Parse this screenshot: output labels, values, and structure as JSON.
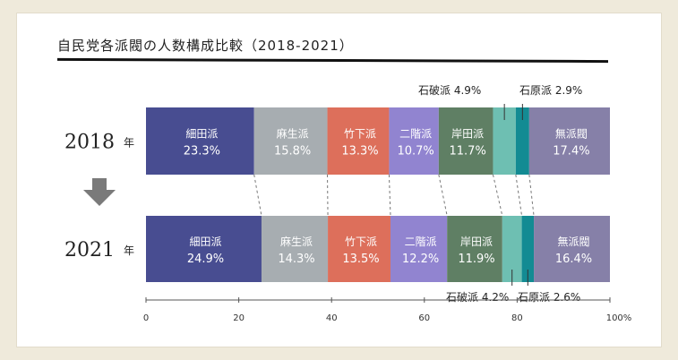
{
  "title": "自民党各派閥の人数構成比較（2018-2021）",
  "chart_data": {
    "type": "bar",
    "orientation": "horizontal",
    "stacked": true,
    "title": "自民党各派閥の人数構成比較（2018-2021）",
    "categories": [
      "2018",
      "2021"
    ],
    "category_unit": "年",
    "xlim": [
      0,
      100
    ],
    "x_ticks": [
      "0",
      "20",
      "40",
      "60",
      "80",
      "100%"
    ],
    "series": [
      {
        "name": "細田派",
        "color": "#484d91",
        "values": [
          23.3,
          24.9
        ],
        "value_labels": [
          "23.3%",
          "24.9%"
        ]
      },
      {
        "name": "麻生派",
        "color": "#a7adb1",
        "values": [
          15.8,
          14.3
        ],
        "value_labels": [
          "15.8%",
          "14.3%"
        ]
      },
      {
        "name": "竹下派",
        "color": "#dd6f5b",
        "values": [
          13.3,
          13.5
        ],
        "value_labels": [
          "13.3%",
          "13.5%"
        ]
      },
      {
        "name": "二階派",
        "color": "#9184d0",
        "values": [
          10.7,
          12.2
        ],
        "value_labels": [
          "10.7%",
          "12.2%"
        ]
      },
      {
        "name": "岸田派",
        "color": "#5f7f64",
        "values": [
          11.7,
          11.9
        ],
        "value_labels": [
          "11.7%",
          "11.9%"
        ]
      },
      {
        "name": "石破派",
        "color": "#6ebfb2",
        "values": [
          4.9,
          4.2
        ],
        "value_labels": [
          "4.9%",
          "4.2%"
        ]
      },
      {
        "name": "石原派",
        "color": "#138b93",
        "values": [
          2.9,
          2.6
        ],
        "value_labels": [
          "2.9%",
          "2.6%"
        ]
      },
      {
        "name": "無派閥",
        "color": "#8680a8",
        "values": [
          17.4,
          16.4
        ],
        "value_labels": [
          "17.4%",
          "16.4%"
        ]
      }
    ],
    "connector_lines": "dashed"
  }
}
